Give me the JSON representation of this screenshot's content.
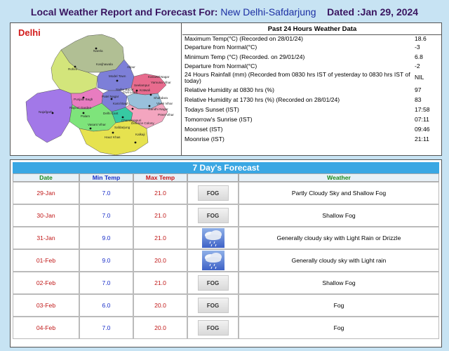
{
  "header": {
    "prefix": "Local Weather Report and Forecast For:",
    "station": "New Delhi-Safdarjung",
    "dated": "Dated :Jan 29, 2024"
  },
  "map": {
    "title": "Delhi",
    "colors": {
      "north": "#b1bf94",
      "northwest": "#d3e57b",
      "west": "#a278e8",
      "central_west": "#e87cc0",
      "south": "#e6e24f",
      "south_west": "#7ee47b",
      "central": "#7d7fd8",
      "north_east": "#e86b8e",
      "shahdara": "#99c0db",
      "east": "#f3a5bf",
      "new_delhi": "#37c9a3"
    },
    "labels": {
      "narela": "Narela",
      "rohini": "Rohini",
      "kanjhawala": "Kanjhawala",
      "model_town": "Model Town",
      "alipur": "Alipur",
      "seelampur": "Seelampur",
      "yamuna_vihar": "Yamuna Vihar",
      "karawal_nagar": "Karawal Nagar",
      "kotwali": "Kotwali",
      "sadar_bazar": "Sadar Bazar",
      "shahdara": "Shahdara",
      "vivek_vihar": "Vivek Vihar",
      "punjabi_bagh": "Punjabi Bagh",
      "patel_nagar": "Patel Nagar",
      "karol_bagh": "Karol Bagh",
      "civil_lines": "Civil Lines",
      "rajouri_garden": "Rajouri Garden",
      "gandhi_nagar": "Gandhi Nagar",
      "preet_vihar": "Preet Vihar",
      "delhi_cant": "Delhi Cant",
      "chanakyapuri": "Chanakyapuri",
      "najafgarh": "Najafgarh",
      "palam": "Palam",
      "vasant_vihar": "Vasant Vihar",
      "defence_colony": "Defence Colony",
      "safdarjung": "Safdarjung",
      "hauz_khas": "Hauz Khas",
      "kalkaji": "Kalkaji"
    }
  },
  "past24": {
    "title": "Past 24 Hours Weather Data",
    "rows": [
      {
        "label": "Maximum Temp(°C) (Recorded on 28/01/24)",
        "value": "18.6"
      },
      {
        "label": "Departure from Normal(°C)",
        "value": "-3"
      },
      {
        "label": "Minimum Temp (°C) (Recorded. on 29/01/24)",
        "value": "6.8"
      },
      {
        "label": "Departure from Normal(°C)",
        "value": "-2"
      },
      {
        "label": "24 Hours Rainfall (mm) (Recorded from 0830 hrs IST of yesterday to 0830 hrs IST of today)",
        "value": "NIL"
      },
      {
        "label": "Relative Humidity at 0830 hrs (%)",
        "value": "97"
      },
      {
        "label": "Relative Humidity at 1730 hrs (%) (Recorded on 28/01/24)",
        "value": "83"
      },
      {
        "label": "Todays Sunset (IST)",
        "value": "17:58"
      },
      {
        "label": "Tomorrow's Sunrise (IST)",
        "value": "07:11"
      },
      {
        "label": "Moonset (IST)",
        "value": "09:46"
      },
      {
        "label": "Moonrise (IST)",
        "value": "21:11"
      }
    ]
  },
  "forecast": {
    "title": "7 Day's Forecast",
    "headers": {
      "date": "Date",
      "min": "Min Temp",
      "max": "Max Temp",
      "weather": "Weather"
    },
    "days": [
      {
        "date": "29-Jan",
        "min": "7.0",
        "max": "21.0",
        "icon": "fog-icon",
        "icon_text": "FOG",
        "weather": "Partly Cloudy Sky and Shallow Fog"
      },
      {
        "date": "30-Jan",
        "min": "7.0",
        "max": "21.0",
        "icon": "fog-icon",
        "icon_text": "FOG",
        "weather": "Shallow Fog"
      },
      {
        "date": "31-Jan",
        "min": "9.0",
        "max": "21.0",
        "icon": "rain-cloud-icon",
        "icon_text": "",
        "weather": "Generally cloudy sky with Light Rain or Drizzle"
      },
      {
        "date": "01-Feb",
        "min": "9.0",
        "max": "20.0",
        "icon": "rain-cloud-icon",
        "icon_text": "",
        "weather": "Generally cloudy sky with Light rain"
      },
      {
        "date": "02-Feb",
        "min": "7.0",
        "max": "21.0",
        "icon": "fog-icon",
        "icon_text": "FOG",
        "weather": "Shallow Fog"
      },
      {
        "date": "03-Feb",
        "min": "6.0",
        "max": "20.0",
        "icon": "fog-icon",
        "icon_text": "FOG",
        "weather": "Fog"
      },
      {
        "date": "04-Feb",
        "min": "7.0",
        "max": "20.0",
        "icon": "fog-icon",
        "icon_text": "FOG",
        "weather": "Fog"
      }
    ]
  }
}
